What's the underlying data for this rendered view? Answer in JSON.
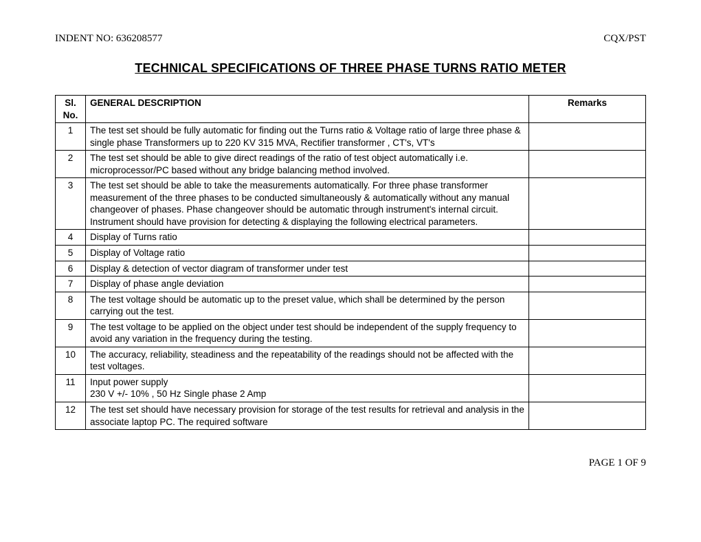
{
  "header": {
    "left": "INDENT NO: 636208577",
    "right": "CQX/PST"
  },
  "title": "TECHNICAL SPECIFICATIONS OF THREE PHASE TURNS RATIO METER",
  "table": {
    "columns": {
      "sl": "Sl. No.",
      "desc": "GENERAL DESCRIPTION",
      "remarks": "Remarks"
    },
    "rows": [
      {
        "sl": "1",
        "desc": "The test set should be fully automatic for finding out the Turns ratio & Voltage ratio of large three phase & single phase Transformers up to 220 KV 315 MVA, Rectifier transformer , CT's, VT's",
        "remarks": ""
      },
      {
        "sl": "2",
        "desc": "The test set should be able to give direct readings of the ratio of test object automatically i.e. microprocessor/PC based without any bridge balancing method involved.",
        "remarks": ""
      },
      {
        "sl": "3",
        "desc": "The test set should be able to take the measurements automatically. For three phase transformer measurement of the three phases to be conducted simultaneously & automatically without any manual changeover of phases. Phase changeover should be automatic through instrument's internal circuit. Instrument should have provision for detecting & displaying the following electrical parameters.",
        "remarks": ""
      },
      {
        "sl": "4",
        "desc": "Display of Turns ratio",
        "remarks": ""
      },
      {
        "sl": "5",
        "desc": "Display of Voltage ratio",
        "remarks": ""
      },
      {
        "sl": "6",
        "desc": "Display  & detection of vector diagram of transformer under test",
        "remarks": ""
      },
      {
        "sl": "7",
        "desc": "Display of phase angle deviation",
        "remarks": ""
      },
      {
        "sl": "8",
        "desc": "The test voltage should be automatic up to the preset value, which shall be determined by the person carrying out the test.",
        "remarks": ""
      },
      {
        "sl": "9",
        "desc": "The test voltage to be applied on the object under test should be independent of the supply frequency to avoid any variation in the frequency during the testing.",
        "remarks": ""
      },
      {
        "sl": "10",
        "desc": "The accuracy, reliability, steadiness and the repeatability of the readings should not be affected with the test voltages.",
        "remarks": ""
      },
      {
        "sl": "11",
        "desc": "Input power supply\n230 V +/- 10% , 50 Hz Single phase 2 Amp",
        "remarks": ""
      },
      {
        "sl": "12",
        "desc": "The test set should have necessary provision for storage of the test results for retrieval and analysis in the associate laptop PC. The required software",
        "remarks": ""
      }
    ]
  },
  "footer": "PAGE 1 OF 9"
}
